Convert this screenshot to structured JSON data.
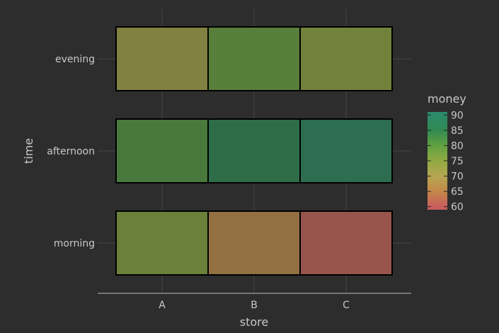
{
  "chart_data": {
    "type": "heatmap",
    "xlabel": "store",
    "ylabel": "time",
    "x_categories": [
      "A",
      "B",
      "C"
    ],
    "y_categories": [
      "morning",
      "afternoon",
      "evening"
    ],
    "cells": [
      {
        "x": "A",
        "y": "morning",
        "value": 76
      },
      {
        "x": "B",
        "y": "morning",
        "value": 66
      },
      {
        "x": "C",
        "y": "morning",
        "value": 61
      },
      {
        "x": "A",
        "y": "afternoon",
        "value": 81
      },
      {
        "x": "B",
        "y": "afternoon",
        "value": 86
      },
      {
        "x": "C",
        "y": "afternoon",
        "value": 88
      },
      {
        "x": "A",
        "y": "evening",
        "value": 72
      },
      {
        "x": "B",
        "y": "evening",
        "value": 79
      },
      {
        "x": "C",
        "y": "evening",
        "value": 75
      }
    ],
    "legend": {
      "title": "money",
      "ticks": [
        90,
        85,
        80,
        75,
        70,
        65,
        60
      ],
      "range": [
        59,
        91
      ],
      "colors": [
        "#f06a6a",
        "#e8a050",
        "#d8c45a",
        "#80c040",
        "#2fa060",
        "#2aa37a"
      ]
    },
    "grid": true,
    "legend_position": "right"
  }
}
